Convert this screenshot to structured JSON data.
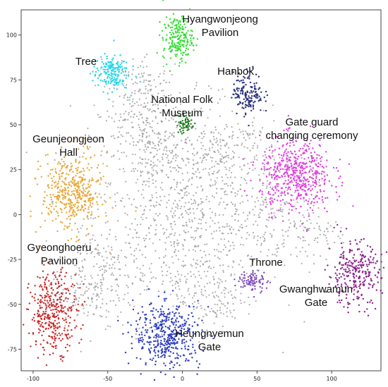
{
  "chart_data": {
    "type": "scatter",
    "title": "",
    "xlabel": "",
    "ylabel": "",
    "xlim": [
      -108,
      133
    ],
    "ylim": [
      -87,
      114
    ],
    "xticks": [
      -100,
      -50,
      0,
      50,
      100
    ],
    "yticks": [
      -75,
      -50,
      -25,
      0,
      25,
      50,
      75,
      100
    ],
    "background_color": "#999999",
    "clusters": [
      {
        "name": "Hyangwonjeong Pavilion",
        "label_lines": [
          "Hyangwonjeong",
          "Pavilion"
        ],
        "color": "#33dd33",
        "center": [
          -3,
          98
        ],
        "spread": [
          5,
          6
        ],
        "count": 200
      },
      {
        "name": "Tree",
        "label_lines": [
          "Tree"
        ],
        "color": "#22d8e8",
        "center": [
          -48,
          79
        ],
        "spread": [
          6,
          5
        ],
        "count": 180
      },
      {
        "name": "Hanbok",
        "label_lines": [
          "Hanbok"
        ],
        "color": "#28307a",
        "center": [
          44,
          68
        ],
        "spread": [
          5,
          6
        ],
        "count": 160
      },
      {
        "name": "National Folk Museum",
        "label_lines": [
          "National Folk",
          "Museum"
        ],
        "color": "#1a7a1a",
        "center": [
          2,
          51
        ],
        "spread": [
          3,
          3
        ],
        "count": 60
      },
      {
        "name": "Gate guard changing ceremony",
        "label_lines": [
          "Gate guard",
          "changing ceremony"
        ],
        "color": "#e040e0",
        "center": [
          76,
          22
        ],
        "spread": [
          12,
          10
        ],
        "count": 520
      },
      {
        "name": "Geunjeongjeon Hall",
        "label_lines": [
          "Geunjeongjeon",
          "Hall"
        ],
        "color": "#e8a838",
        "center": [
          -74,
          12
        ],
        "spread": [
          10,
          11
        ],
        "count": 440
      },
      {
        "name": "Gyeonghoeru Pavilion",
        "label_lines": [
          "Gyeonghoeru",
          "Pavilion"
        ],
        "color": "#cc2828",
        "center": [
          -86,
          -54
        ],
        "spread": [
          8,
          11
        ],
        "count": 360
      },
      {
        "name": "Throne",
        "label_lines": [
          "Throne"
        ],
        "color": "#7e4db8",
        "center": [
          47,
          -37
        ],
        "spread": [
          5,
          3
        ],
        "count": 90
      },
      {
        "name": "Gwanghwamun Gate",
        "label_lines": [
          "Gwanghwamun",
          "Gate"
        ],
        "color": "#8a248a",
        "center": [
          115,
          -33
        ],
        "spread": [
          9,
          9
        ],
        "count": 280
      },
      {
        "name": "Heungnyemun Gate",
        "label_lines": [
          "Heungnyemun",
          "Gate"
        ],
        "color": "#2c3cc0",
        "center": [
          -10,
          -67
        ],
        "spread": [
          11,
          9
        ],
        "count": 420
      }
    ]
  }
}
